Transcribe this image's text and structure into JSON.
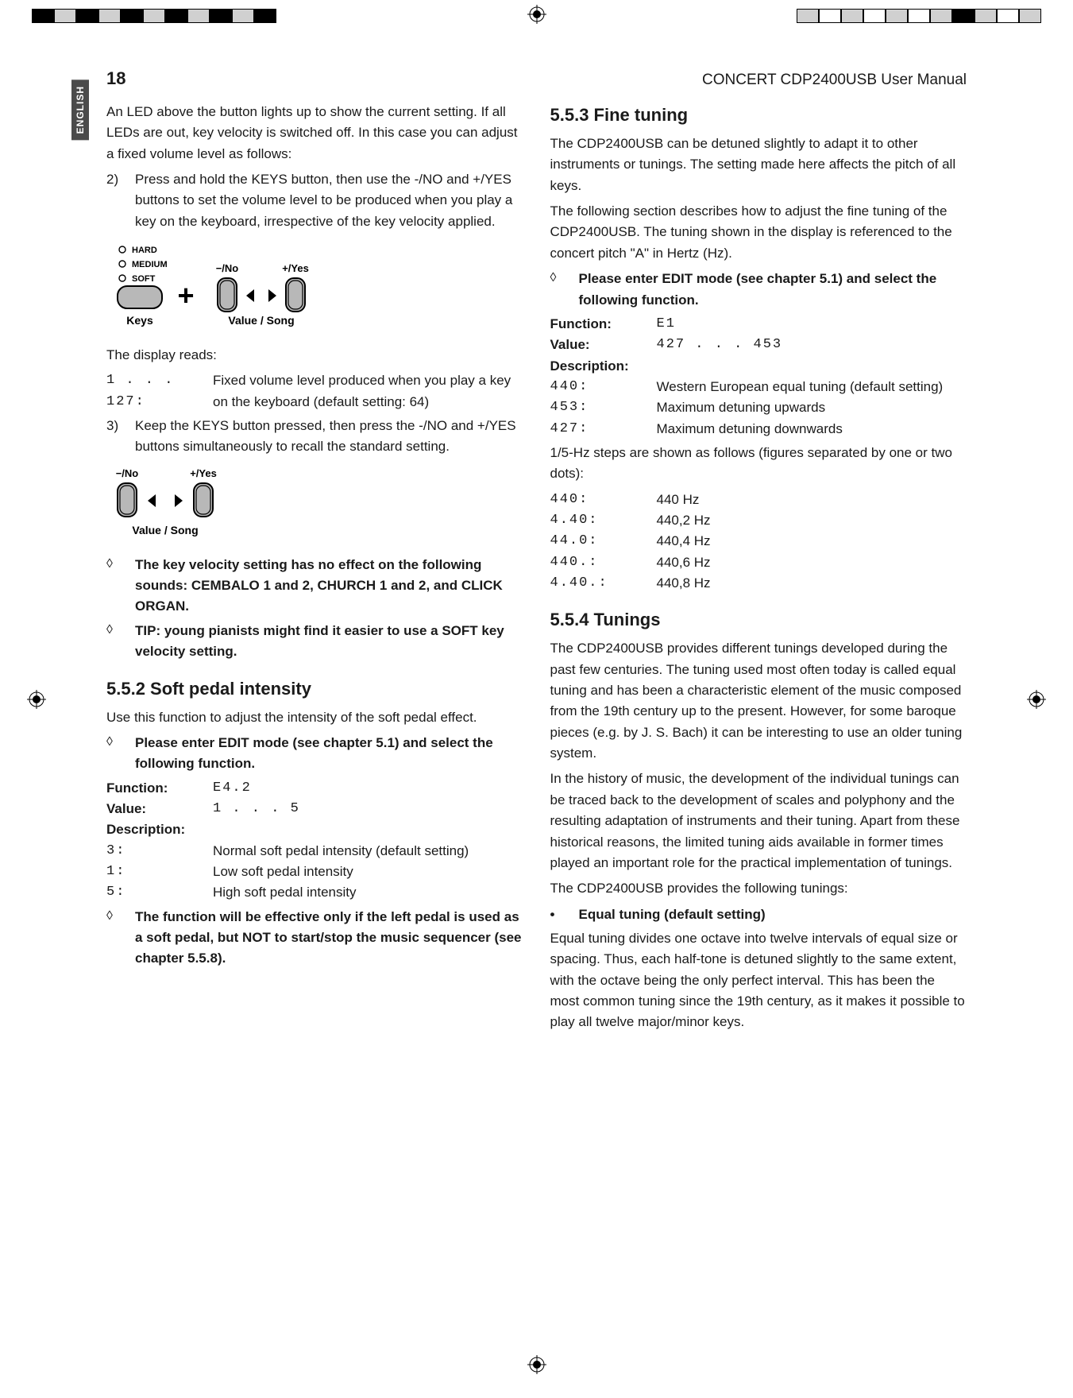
{
  "header": {
    "page_number": "18",
    "manual_title": "CONCERT CDP2400USB User Manual",
    "language_tab": "ENGLISH"
  },
  "printer_marks": {
    "left_colors": [
      "#000000",
      "#d0d0d0",
      "#000000",
      "#d0d0d0",
      "#000000",
      "#d0d0d0",
      "#000000",
      "#d0d0d0",
      "#000000",
      "#d0d0d0",
      "#000000"
    ],
    "right_colors": [
      "#d0d0d0",
      "#ffffff",
      "#d0d0d0",
      "#ffffff",
      "#d0d0d0",
      "#ffffff",
      "#d0d0d0",
      "#000000",
      "#d0d0d0",
      "#ffffff",
      "#d0d0d0"
    ]
  },
  "left_col": {
    "intro": "An LED above the button lights up to show the current setting. If all LEDs are out, key velocity is switched off. In this case you can adjust a fixed volume level as follows:",
    "step2_num": "2)",
    "step2": "Press and hold the KEYS button, then use the -/NO and +/YES buttons to set the volume level to be produced when you play a key on the keyboard, irrespective of the key velocity applied.",
    "fig1": {
      "led_labels": [
        "HARD",
        "MEDIUM",
        "SOFT"
      ],
      "no_label": "−/No",
      "yes_label": "+/Yes",
      "keys_label": "Keys",
      "value_label": "Value / Song",
      "plus": "+"
    },
    "display_reads": "The display reads:",
    "display_code": "1 . . . 127:",
    "display_text": "Fixed volume level produced when you play a key on the keyboard (default setting: 64)",
    "step3_num": "3)",
    "step3": "Keep the KEYS button pressed, then press the -/NO and +/YES buttons simultaneously to recall the standard setting.",
    "fig2": {
      "no_label": "−/No",
      "yes_label": "+/Yes",
      "value_label": "Value / Song"
    },
    "note1": "The key velocity setting has no effect on the following sounds: CEMBALO 1 and 2, CHURCH 1 and 2, and CLICK ORGAN.",
    "note2": "TIP: young pianists might find it easier to use a SOFT key velocity setting.",
    "h552": "5.5.2  Soft pedal intensity",
    "p552": "Use this function to adjust the intensity of the soft pedal effect.",
    "edit_mode": "Please enter EDIT mode (see chapter 5.1) and select the following function.",
    "func_label": "Function:",
    "func_val": "E4.2",
    "value_label": "Value:",
    "value_val": "1 . . . 5",
    "desc_label": "Description:",
    "rows": [
      {
        "k": "3:",
        "v": "Normal soft pedal intensity (default setting)"
      },
      {
        "k": "1:",
        "v": "Low soft pedal intensity"
      },
      {
        "k": "5:",
        "v": "High soft pedal intensity"
      }
    ],
    "note3": "The function will be effective only if the left pedal is used as a soft pedal, but NOT to start/stop the music sequencer (see chapter 5.5.8)."
  },
  "right_col": {
    "h553": "5.5.3  Fine tuning",
    "p553a": "The CDP2400USB can be detuned slightly to adapt it to other instruments or tunings. The setting made here affects the pitch of all keys.",
    "p553b": "The following section describes how to adjust the fine tuning of the CDP2400USB. The tuning shown in the display is referenced to the concert pitch \"A\" in Hertz (Hz).",
    "edit_mode": "Please enter EDIT mode (see chapter 5.1) and select the following function.",
    "func_label": "Function:",
    "func_val": "E1",
    "value_label": "Value:",
    "value_val": "427 . . . 453",
    "desc_label": "Description:",
    "rows1": [
      {
        "k": "440:",
        "v": "Western European equal tuning (default setting)"
      },
      {
        "k": "453:",
        "v": "Maximum detuning upwards"
      },
      {
        "k": "427:",
        "v": "Maximum detuning downwards"
      }
    ],
    "steps_intro": "1/5-Hz steps are shown as follows (figures separated by one or two dots):",
    "rows2": [
      {
        "k": "440:",
        "v": "440 Hz"
      },
      {
        "k": "4.40:",
        "v": "440,2 Hz"
      },
      {
        "k": "44.0:",
        "v": "440,4 Hz"
      },
      {
        "k": "440.:",
        "v": "440,6 Hz"
      },
      {
        "k": "4.40.:",
        "v": "440,8 Hz"
      }
    ],
    "h554": "5.5.4  Tunings",
    "p554a": "The CDP2400USB provides different tunings developed during the past few centuries. The tuning used most often today is called equal tuning and has been a characteristic element of the music composed from the 19th century up to the present. However, for some baroque pieces (e.g. by J. S. Bach) it can be interesting to use an older tuning system.",
    "p554b": "In the history of music, the development of the individual tunings can be traced back to the development of scales and polyphony and the resulting adaptation of instruments and their tuning. Apart from these historical reasons, the limited tuning aids available in former times played an important role for the practical implementation of tunings.",
    "p554c": "The CDP2400USB provides the following tunings:",
    "bullet_label": "Equal tuning (default setting)",
    "p554d": "Equal tuning divides one octave into twelve intervals of equal size or spacing. Thus, each half-tone is detuned slightly to the same extent, with the octave being the only perfect interval. This has been the most common tuning since the 19th century, as it makes it possible to play all twelve major/minor keys."
  }
}
